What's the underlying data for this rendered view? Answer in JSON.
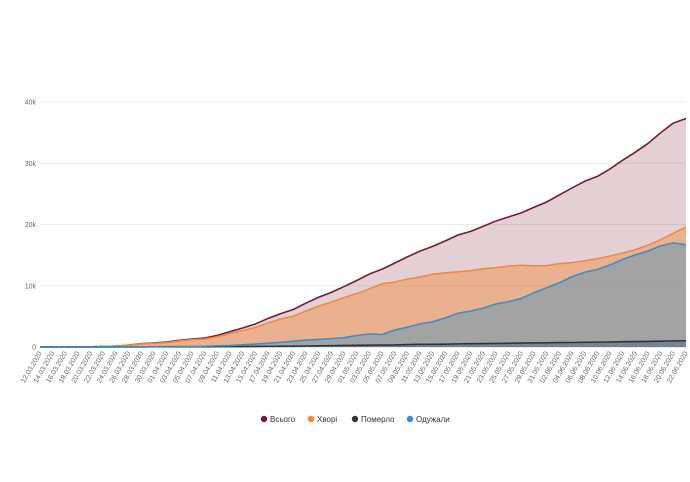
{
  "chart_data": {
    "type": "area",
    "x": [
      "12.03.2020",
      "14.03.2020",
      "16.03.2020",
      "18.03.2020",
      "20.03.2020",
      "22.03.2020",
      "24.03.2020",
      "26.03.2020",
      "28.03.2020",
      "30.03.2020",
      "01.04.2020",
      "03.04.2020",
      "05.04.2020",
      "07.04.2020",
      "09.04.2020",
      "11.04.2020",
      "13.04.2020",
      "15.04.2020",
      "17.04.2020",
      "19.04.2020",
      "21.04.2020",
      "23.04.2020",
      "25.04.2020",
      "27.04.2020",
      "29.04.2020",
      "01.05.2020",
      "03.05.2020",
      "05.05.2020",
      "07.05.2020",
      "09.05.2020",
      "11.05.2020",
      "13.05.2020",
      "15.05.2020",
      "17.05.2020",
      "19.05.2020",
      "21.05.2020",
      "23.05.2020",
      "25.05.2020",
      "27.05.2020",
      "29.05.2020",
      "31.05.2020",
      "02.06.2020",
      "04.06.2020",
      "06.06.2020",
      "08.06.2020",
      "10.06.2020",
      "12.06.2020",
      "14.06.2020",
      "16.06.2020",
      "18.06.2020",
      "20.06.2020",
      "22.06.2020"
    ],
    "series": [
      {
        "name": "Всього",
        "color": "#7a1a2e",
        "values": [
          1,
          3,
          7,
          16,
          29,
          84,
          145,
          310,
          549,
          669,
          804,
          1096,
          1308,
          1462,
          1892,
          2511,
          3102,
          3764,
          4662,
          5449,
          6125,
          7170,
          8125,
          8921,
          9866,
          10861,
          11913,
          12697,
          13691,
          14710,
          15648,
          16425,
          17330,
          18291,
          18876,
          19706,
          20580,
          21245,
          21905,
          22811,
          23672,
          24823,
          25964,
          27058,
          27856,
          29070,
          30506,
          31810,
          33234,
          34984,
          36560,
          37309
        ]
      },
      {
        "name": "Хворі",
        "color": "#f08a3c",
        "values": [
          1,
          3,
          7,
          15,
          27,
          78,
          134,
          286,
          500,
          605,
          709,
          993,
          1204,
          1302,
          1660,
          2205,
          2674,
          3195,
          3940,
          4570,
          5033,
          5878,
          6694,
          7330,
          8084,
          8713,
          9492,
          10338,
          10596,
          11081,
          11436,
          11870,
          12117,
          12269,
          12464,
          12791,
          12958,
          13225,
          13330,
          13263,
          13302,
          13605,
          13758,
          14086,
          14407,
          14855,
          15338,
          15892,
          16641,
          17521,
          18563,
          19600
        ]
      },
      {
        "name": "Померло",
        "color": "#2c3440",
        "values": [
          0,
          0,
          0,
          1,
          1,
          3,
          4,
          9,
          16,
          19,
          22,
          27,
          32,
          39,
          46,
          64,
          78,
          93,
          103,
          110,
          140,
          162,
          199,
          223,
          257,
          275,
          293,
          316,
          330,
          399,
          437,
          441,
          466,
          509,
          548,
          564,
          588,
          608,
          644,
          665,
          696,
          727,
          733,
          759,
          797,
          817,
          867,
          880,
          912,
          956,
          999,
          1021
        ]
      },
      {
        "name": "Одужали",
        "color": "#3b8fc4",
        "values": [
          0,
          0,
          0,
          0,
          1,
          3,
          7,
          15,
          33,
          45,
          73,
          76,
          72,
          121,
          186,
          242,
          350,
          476,
          619,
          769,
          952,
          1130,
          1232,
          1368,
          1525,
          1873,
          2128,
          2043,
          2765,
          3230,
          3775,
          4114,
          4747,
          5513,
          5864,
          6351,
          7034,
          7412,
          7931,
          8883,
          9674,
          10491,
          11473,
          12213,
          12652,
          13398,
          14301,
          15038,
          15681,
          16507,
          16998,
          16688
        ]
      }
    ],
    "ylim": [
      0,
      40000
    ],
    "yticks": [
      0,
      10000,
      20000,
      30000,
      40000
    ],
    "ytick_labels": [
      "0",
      "10k",
      "20k",
      "30k",
      "40k"
    ],
    "grid": true,
    "legend_position": "bottom"
  }
}
